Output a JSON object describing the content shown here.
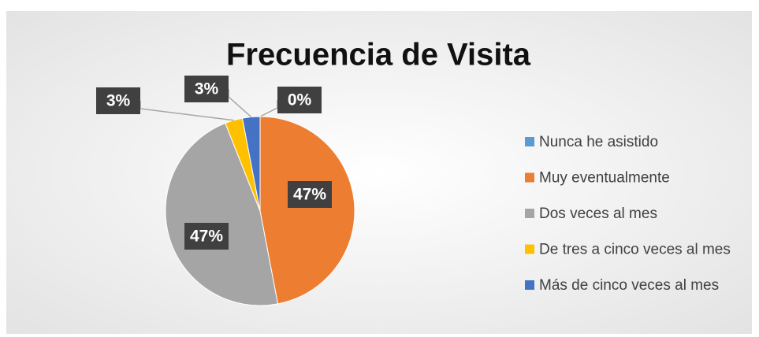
{
  "chart_data": {
    "type": "pie",
    "title": "Frecuencia de Visita",
    "categories": [
      "Nunca he asistido",
      "Muy eventualmente",
      "Dos veces al mes",
      "De tres a cinco veces al mes",
      "Más de cinco veces al mes"
    ],
    "values": [
      0,
      47,
      47,
      3,
      3
    ],
    "value_labels": [
      "0%",
      "47%",
      "47%",
      "3%",
      "3%"
    ],
    "colors": [
      "#5B9BD5",
      "#ED7D31",
      "#A5A5A5",
      "#FFC000",
      "#4472C4"
    ],
    "legend": "right"
  }
}
